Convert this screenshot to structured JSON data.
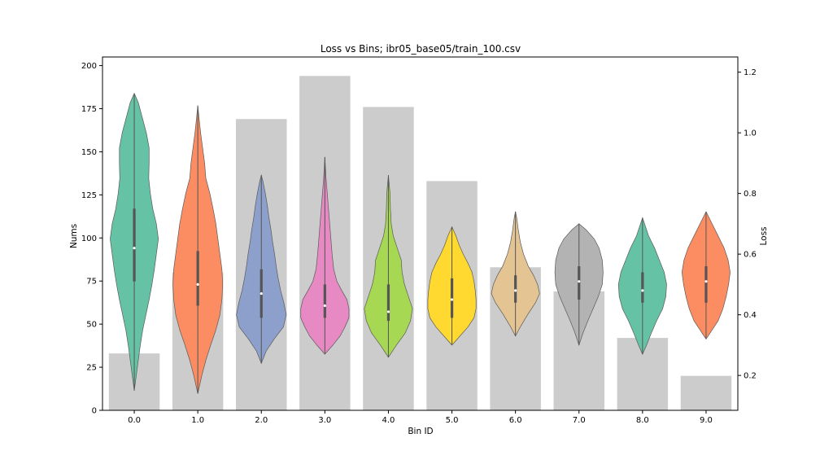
{
  "chart_data": {
    "type": "bar+violin",
    "title": "Loss vs Bins; ibr05_base05/train_100.csv",
    "xlabel": "Bin ID",
    "ylabel_left": "Nums",
    "ylabel_right": "Loss",
    "categories": [
      "0.0",
      "1.0",
      "2.0",
      "3.0",
      "4.0",
      "5.0",
      "6.0",
      "7.0",
      "8.0",
      "9.0"
    ],
    "left_axis": {
      "ylim": [
        0,
        205
      ],
      "ticks": [
        0,
        25,
        50,
        75,
        100,
        125,
        150,
        175,
        200
      ]
    },
    "right_axis": {
      "ylim": [
        0.085,
        1.25
      ],
      "ticks": [
        0.2,
        0.4,
        0.6,
        0.8,
        1.0,
        1.2
      ],
      "tick_labels": [
        "0.2",
        "0.4",
        "0.6",
        "0.8",
        "1.0",
        "1.2"
      ]
    },
    "bar_color": "#cccccc",
    "bars": [
      33,
      80,
      169,
      194,
      176,
      133,
      83,
      69,
      42,
      20
    ],
    "violins": [
      {
        "color": "#66c2a5",
        "min": 0.15,
        "max": 1.13,
        "q1": 0.51,
        "median": 0.62,
        "q3": 0.75,
        "profile": [
          [
            0.15,
            0.0
          ],
          [
            0.2,
            0.05
          ],
          [
            0.25,
            0.1
          ],
          [
            0.3,
            0.15
          ],
          [
            0.35,
            0.21
          ],
          [
            0.4,
            0.29
          ],
          [
            0.45,
            0.37
          ],
          [
            0.5,
            0.44
          ],
          [
            0.55,
            0.5
          ],
          [
            0.6,
            0.55
          ],
          [
            0.65,
            0.6
          ],
          [
            0.7,
            0.55
          ],
          [
            0.75,
            0.46
          ],
          [
            0.8,
            0.4
          ],
          [
            0.85,
            0.36
          ],
          [
            0.9,
            0.37
          ],
          [
            0.95,
            0.37
          ],
          [
            1.0,
            0.3
          ],
          [
            1.05,
            0.2
          ],
          [
            1.1,
            0.1
          ],
          [
            1.13,
            0.0
          ]
        ]
      },
      {
        "color": "#fc8d62",
        "min": 0.14,
        "max": 1.09,
        "q1": 0.43,
        "median": 0.5,
        "q3": 0.61,
        "profile": [
          [
            0.14,
            0.0
          ],
          [
            0.2,
            0.1
          ],
          [
            0.25,
            0.2
          ],
          [
            0.3,
            0.32
          ],
          [
            0.35,
            0.45
          ],
          [
            0.4,
            0.55
          ],
          [
            0.45,
            0.6
          ],
          [
            0.5,
            0.62
          ],
          [
            0.55,
            0.6
          ],
          [
            0.6,
            0.55
          ],
          [
            0.65,
            0.5
          ],
          [
            0.7,
            0.45
          ],
          [
            0.75,
            0.38
          ],
          [
            0.8,
            0.3
          ],
          [
            0.85,
            0.2
          ],
          [
            0.9,
            0.17
          ],
          [
            0.95,
            0.12
          ],
          [
            1.0,
            0.07
          ],
          [
            1.05,
            0.03
          ],
          [
            1.09,
            0.0
          ]
        ]
      },
      {
        "color": "#8da0cb",
        "min": 0.24,
        "max": 0.86,
        "q1": 0.39,
        "median": 0.47,
        "q3": 0.55,
        "profile": [
          [
            0.24,
            0.0
          ],
          [
            0.28,
            0.12
          ],
          [
            0.32,
            0.32
          ],
          [
            0.36,
            0.55
          ],
          [
            0.4,
            0.62
          ],
          [
            0.44,
            0.56
          ],
          [
            0.48,
            0.48
          ],
          [
            0.52,
            0.42
          ],
          [
            0.56,
            0.37
          ],
          [
            0.6,
            0.33
          ],
          [
            0.64,
            0.28
          ],
          [
            0.68,
            0.24
          ],
          [
            0.72,
            0.19
          ],
          [
            0.76,
            0.15
          ],
          [
            0.8,
            0.1
          ],
          [
            0.84,
            0.04
          ],
          [
            0.86,
            0.0
          ]
        ]
      },
      {
        "color": "#e78ac3",
        "min": 0.27,
        "max": 0.92,
        "q1": 0.39,
        "median": 0.43,
        "q3": 0.5,
        "profile": [
          [
            0.27,
            0.0
          ],
          [
            0.3,
            0.2
          ],
          [
            0.33,
            0.38
          ],
          [
            0.36,
            0.5
          ],
          [
            0.39,
            0.6
          ],
          [
            0.42,
            0.6
          ],
          [
            0.45,
            0.55
          ],
          [
            0.48,
            0.42
          ],
          [
            0.51,
            0.3
          ],
          [
            0.55,
            0.22
          ],
          [
            0.6,
            0.18
          ],
          [
            0.65,
            0.15
          ],
          [
            0.7,
            0.12
          ],
          [
            0.75,
            0.09
          ],
          [
            0.8,
            0.06
          ],
          [
            0.85,
            0.03
          ],
          [
            0.92,
            0.0
          ]
        ]
      },
      {
        "color": "#a6d854",
        "min": 0.26,
        "max": 0.86,
        "q1": 0.38,
        "median": 0.41,
        "q3": 0.5,
        "profile": [
          [
            0.26,
            0.0
          ],
          [
            0.3,
            0.2
          ],
          [
            0.34,
            0.42
          ],
          [
            0.38,
            0.55
          ],
          [
            0.42,
            0.6
          ],
          [
            0.46,
            0.5
          ],
          [
            0.5,
            0.4
          ],
          [
            0.54,
            0.34
          ],
          [
            0.58,
            0.32
          ],
          [
            0.62,
            0.22
          ],
          [
            0.66,
            0.12
          ],
          [
            0.7,
            0.07
          ],
          [
            0.75,
            0.05
          ],
          [
            0.8,
            0.04
          ],
          [
            0.86,
            0.0
          ]
        ]
      },
      {
        "color": "#ffd92f",
        "min": 0.3,
        "max": 0.69,
        "q1": 0.39,
        "median": 0.45,
        "q3": 0.52,
        "profile": [
          [
            0.3,
            0.0
          ],
          [
            0.33,
            0.2
          ],
          [
            0.36,
            0.4
          ],
          [
            0.39,
            0.55
          ],
          [
            0.42,
            0.6
          ],
          [
            0.45,
            0.6
          ],
          [
            0.48,
            0.58
          ],
          [
            0.51,
            0.55
          ],
          [
            0.54,
            0.5
          ],
          [
            0.57,
            0.4
          ],
          [
            0.6,
            0.28
          ],
          [
            0.63,
            0.18
          ],
          [
            0.66,
            0.1
          ],
          [
            0.69,
            0.0
          ]
        ]
      },
      {
        "color": "#e5c494",
        "min": 0.33,
        "max": 0.74,
        "q1": 0.44,
        "median": 0.48,
        "q3": 0.53,
        "profile": [
          [
            0.33,
            0.0
          ],
          [
            0.36,
            0.12
          ],
          [
            0.4,
            0.3
          ],
          [
            0.44,
            0.5
          ],
          [
            0.47,
            0.6
          ],
          [
            0.5,
            0.55
          ],
          [
            0.53,
            0.45
          ],
          [
            0.56,
            0.32
          ],
          [
            0.6,
            0.2
          ],
          [
            0.64,
            0.12
          ],
          [
            0.68,
            0.07
          ],
          [
            0.72,
            0.03
          ],
          [
            0.74,
            0.0
          ]
        ]
      },
      {
        "color": "#b3b3b3",
        "min": 0.3,
        "max": 0.7,
        "q1": 0.45,
        "median": 0.51,
        "q3": 0.56,
        "profile": [
          [
            0.3,
            0.0
          ],
          [
            0.34,
            0.1
          ],
          [
            0.38,
            0.22
          ],
          [
            0.42,
            0.35
          ],
          [
            0.46,
            0.48
          ],
          [
            0.5,
            0.58
          ],
          [
            0.54,
            0.6
          ],
          [
            0.58,
            0.58
          ],
          [
            0.62,
            0.5
          ],
          [
            0.65,
            0.38
          ],
          [
            0.68,
            0.18
          ],
          [
            0.7,
            0.0
          ]
        ]
      },
      {
        "color": "#66c2a5",
        "min": 0.27,
        "max": 0.72,
        "q1": 0.44,
        "median": 0.48,
        "q3": 0.54,
        "profile": [
          [
            0.27,
            0.0
          ],
          [
            0.3,
            0.1
          ],
          [
            0.34,
            0.22
          ],
          [
            0.38,
            0.35
          ],
          [
            0.42,
            0.5
          ],
          [
            0.46,
            0.58
          ],
          [
            0.5,
            0.6
          ],
          [
            0.54,
            0.54
          ],
          [
            0.58,
            0.42
          ],
          [
            0.62,
            0.3
          ],
          [
            0.66,
            0.15
          ],
          [
            0.7,
            0.05
          ],
          [
            0.72,
            0.0
          ]
        ]
      },
      {
        "color": "#fc8d62",
        "min": 0.32,
        "max": 0.74,
        "q1": 0.44,
        "median": 0.51,
        "q3": 0.56,
        "profile": [
          [
            0.32,
            0.0
          ],
          [
            0.35,
            0.15
          ],
          [
            0.38,
            0.3
          ],
          [
            0.42,
            0.42
          ],
          [
            0.46,
            0.5
          ],
          [
            0.5,
            0.56
          ],
          [
            0.54,
            0.6
          ],
          [
            0.58,
            0.55
          ],
          [
            0.62,
            0.45
          ],
          [
            0.66,
            0.3
          ],
          [
            0.7,
            0.15
          ],
          [
            0.74,
            0.0
          ]
        ]
      }
    ]
  }
}
